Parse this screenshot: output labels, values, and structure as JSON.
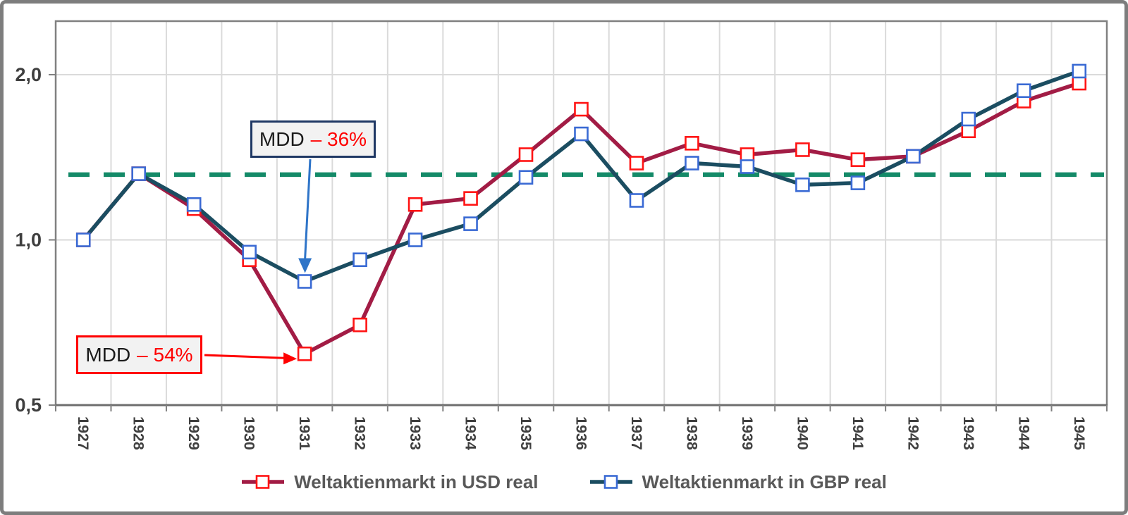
{
  "chart_data": {
    "type": "line",
    "title": "",
    "x": [
      1927,
      1928,
      1929,
      1930,
      1931,
      1932,
      1933,
      1934,
      1935,
      1936,
      1937,
      1938,
      1939,
      1940,
      1941,
      1942,
      1943,
      1944,
      1945
    ],
    "x_axis": {
      "labels": [
        "1927",
        "1928",
        "1929",
        "1930",
        "1931",
        "1932",
        "1933",
        "1934",
        "1935",
        "1936",
        "1937",
        "1938",
        "1939",
        "1940",
        "1941",
        "1942",
        "1943",
        "1944",
        "1945"
      ],
      "label_rotation_deg": 90
    },
    "series": [
      {
        "name": "Weltaktienmarkt in USD real",
        "color": "#A21C45",
        "marker_color": "#FF1414",
        "marker_shape": "square",
        "values": [
          1.0,
          1.32,
          1.14,
          0.92,
          0.62,
          0.7,
          1.16,
          1.19,
          1.43,
          1.73,
          1.38,
          1.5,
          1.43,
          1.46,
          1.4,
          1.42,
          1.58,
          1.79,
          1.93
        ]
      },
      {
        "name": "Weltaktienmarkt in GBP real",
        "color": "#1B4D61",
        "marker_color": "#3A6AD4",
        "marker_shape": "square",
        "values": [
          1.0,
          1.32,
          1.16,
          0.95,
          0.84,
          0.92,
          1.0,
          1.07,
          1.3,
          1.56,
          1.18,
          1.38,
          1.36,
          1.26,
          1.27,
          1.42,
          1.66,
          1.87,
          2.03
        ]
      }
    ],
    "baseline": {
      "value": 1.315,
      "color": "#148A68",
      "style": "dashed",
      "description": "horizontal dashed reference line at 1928 peak level"
    },
    "y_axis": {
      "scale": "log",
      "min": 0.5,
      "max": 2.52,
      "ticks": [
        {
          "value": 0.5,
          "label": "0,5"
        },
        {
          "value": 1.0,
          "label": "1,0"
        },
        {
          "value": 2.0,
          "label": "2,0"
        }
      ]
    },
    "grid": true,
    "legend_position": "bottom"
  },
  "annotations": {
    "mdd_gbp": {
      "prefix": "MDD",
      "value": "– 36%",
      "box_border_color": "#1F3864",
      "arrow_color": "#2E74C8",
      "target_year": 1931,
      "target_series": "Weltaktienmarkt in GBP real"
    },
    "mdd_usd": {
      "prefix": "MDD",
      "value": "– 54%",
      "box_border_color": "#FF0000",
      "arrow_color": "#FF0000",
      "target_year": 1931,
      "target_series": "Weltaktienmarkt in USD real"
    }
  },
  "colors": {
    "grid": "#DADADA",
    "plot_border": "#808080",
    "axis": "#6E6E6E",
    "tick": "#808080",
    "axis_label": "#3F3F3F",
    "legend_text": "#595959",
    "figure_border": "#7D7D7D",
    "annotation_bg": "#F2F2F2"
  }
}
